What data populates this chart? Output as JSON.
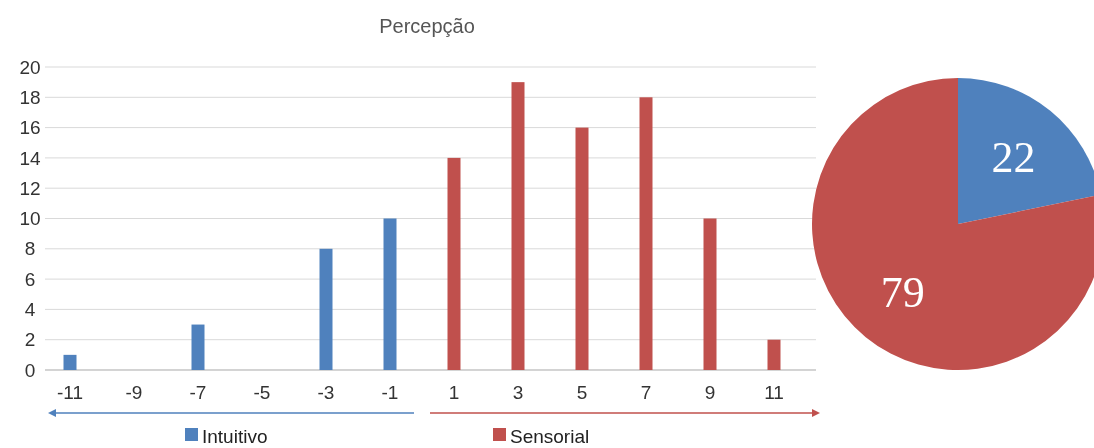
{
  "chart_data": [
    {
      "type": "bar",
      "title": "Percepção",
      "categories": [
        "-11",
        "-9",
        "-7",
        "-5",
        "-3",
        "-1",
        "1",
        "3",
        "5",
        "7",
        "9",
        "11"
      ],
      "stacked": true,
      "series": [
        {
          "name": "Intuitivo",
          "color": "#4f81bd",
          "values": [
            1,
            0,
            3,
            0,
            8,
            10,
            null,
            null,
            null,
            null,
            null,
            null
          ]
        },
        {
          "name": "Sensorial",
          "color": "#c0504d",
          "values": [
            null,
            null,
            null,
            null,
            null,
            null,
            14,
            19,
            16,
            18,
            10,
            2
          ]
        }
      ],
      "ylim": [
        0,
        20
      ],
      "yticks": [
        0,
        2,
        4,
        6,
        8,
        10,
        12,
        14,
        16,
        18,
        20
      ],
      "grid": "y",
      "legend": "bottom"
    },
    {
      "type": "pie",
      "categories": [
        null,
        null
      ],
      "values": [
        22,
        79
      ],
      "colors": [
        "#4f81bd",
        "#c0504d"
      ],
      "data_labels": true
    }
  ]
}
